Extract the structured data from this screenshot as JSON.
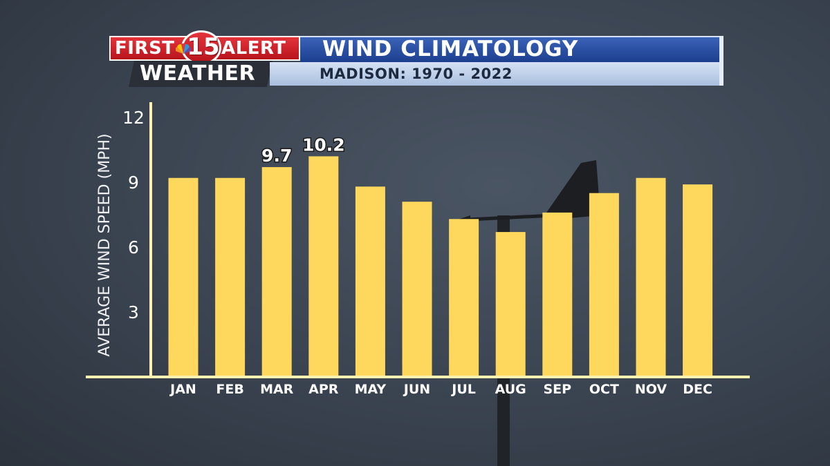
{
  "header": {
    "logo_first": "FIRST",
    "logo_number": "15",
    "logo_alert": "ALERT",
    "logo_weather": "WEATHER",
    "title": "WIND CLIMATOLOGY",
    "subtitle": "MADISON: 1970 - 2022"
  },
  "icons": [
    "nbc-peacock-icon",
    "wind-vane-icon"
  ],
  "colors": {
    "bar": "#fdd85d",
    "axis": "#fff2b0",
    "title_bar": "#1d3f8f",
    "logo_red": "#d42a32"
  },
  "chart_data": {
    "type": "bar",
    "title": "WIND CLIMATOLOGY",
    "subtitle": "MADISON: 1970 - 2022",
    "xlabel": "",
    "ylabel": "AVERAGE WIND SPEED (MPH)",
    "ylim": [
      0,
      12
    ],
    "yticks": [
      3,
      6,
      9,
      12
    ],
    "grid": false,
    "categories": [
      "JAN",
      "FEB",
      "MAR",
      "APR",
      "MAY",
      "JUN",
      "JUL",
      "AUG",
      "SEP",
      "OCT",
      "NOV",
      "DEC"
    ],
    "values": [
      9.2,
      9.2,
      9.7,
      10.2,
      8.8,
      8.1,
      7.3,
      6.7,
      7.6,
      8.5,
      9.2,
      8.9
    ],
    "data_labels": [
      {
        "category": "MAR",
        "text": "9.7"
      },
      {
        "category": "APR",
        "text": "10.2"
      }
    ]
  }
}
